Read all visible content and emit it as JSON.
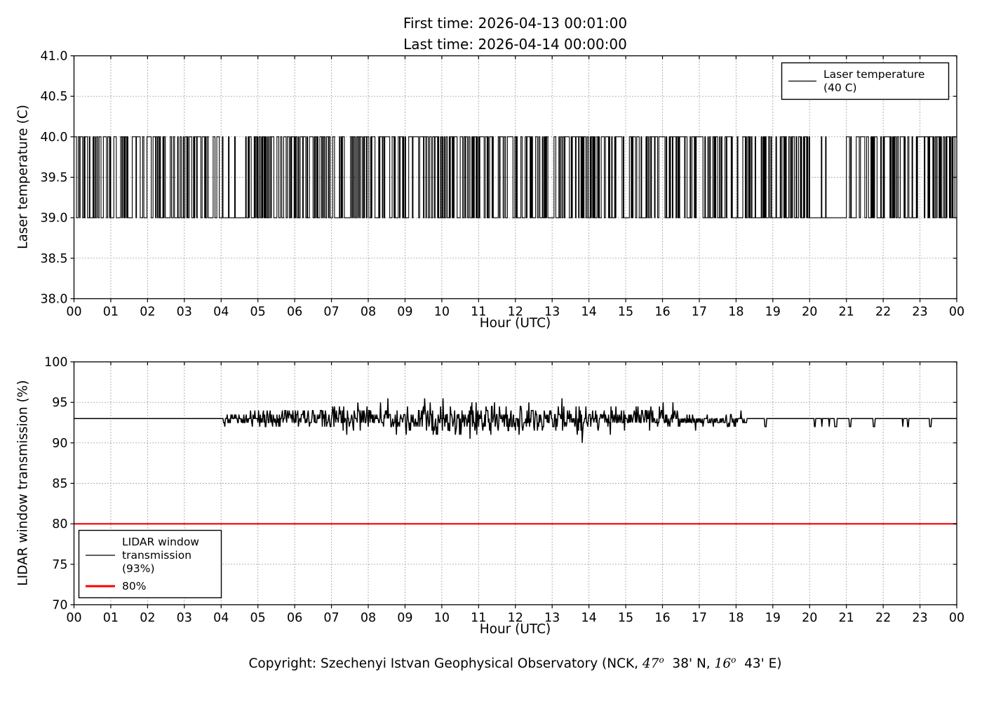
{
  "page": {
    "title_line1": "First time: 2026-04-13 00:01:00",
    "title_line2": "Last time: 2026-04-14 00:00:00",
    "footer": {
      "prefix": "Copyright: Szechenyi Istvan Geophysical Observatory (NCK, ",
      "lat_deg": "47",
      "deg": "o",
      "lat_rest": "  38' N, ",
      "lon_deg": "16",
      "lon_rest": "  43' E)"
    }
  },
  "chart_data": [
    {
      "type": "line",
      "title": "First time: 2026-04-13 00:01:00 / Last time: 2026-04-14 00:00:00",
      "xlabel": "Hour (UTC)",
      "ylabel": "Laser temperature (C)",
      "xlim": [
        0,
        24
      ],
      "ylim": [
        38.0,
        41.0
      ],
      "xticks": [
        "00",
        "01",
        "02",
        "03",
        "04",
        "05",
        "06",
        "07",
        "08",
        "09",
        "10",
        "11",
        "12",
        "13",
        "14",
        "15",
        "16",
        "17",
        "18",
        "19",
        "20",
        "21",
        "22",
        "23",
        "00"
      ],
      "ytick_values": [
        38.0,
        38.5,
        39.0,
        39.5,
        40.0,
        40.5,
        41.0
      ],
      "ytick_labels": [
        "38.0",
        "38.5",
        "39.0",
        "39.5",
        "40.0",
        "40.5",
        "41.0"
      ],
      "grid": true,
      "legend_position": "upper right",
      "legend_entries": [
        {
          "label_lines": [
            "Laser temperature",
            "(40 C)"
          ],
          "color": "#000000",
          "linewidth": 1.3
        }
      ],
      "series": [
        {
          "name": "Laser temperature (40 C)",
          "color": "#000000",
          "kind": "telegraph",
          "description": "Laser temperature toggles rapidly between 39.0 C and 40.0 C all day (square-wave telegraph signal); quieter stretches near 04:00-04:40 (mostly 39), 09:15-09:55 (mostly 40) and 20:00-21:00 (mostly 39).",
          "levels": [
            39.0,
            40.0
          ],
          "initial_level": 40.0,
          "samples_per_hour": 60,
          "seed": 20260413,
          "segments": [
            {
              "start": 0.0,
              "end": 4.0,
              "p_up": 0.4,
              "p_down": 0.4
            },
            {
              "start": 4.0,
              "end": 4.65,
              "p_up": 0.07,
              "p_down": 0.72
            },
            {
              "start": 4.65,
              "end": 9.2,
              "p_up": 0.42,
              "p_down": 0.42
            },
            {
              "start": 9.2,
              "end": 9.9,
              "p_up": 0.6,
              "p_down": 0.14
            },
            {
              "start": 9.9,
              "end": 14.5,
              "p_up": 0.48,
              "p_down": 0.44
            },
            {
              "start": 14.5,
              "end": 16.8,
              "p_up": 0.42,
              "p_down": 0.42
            },
            {
              "start": 16.8,
              "end": 17.25,
              "p_up": 0.55,
              "p_down": 0.22
            },
            {
              "start": 17.25,
              "end": 20.0,
              "p_up": 0.44,
              "p_down": 0.44
            },
            {
              "start": 20.0,
              "end": 20.95,
              "p_up": 0.06,
              "p_down": 0.78
            },
            {
              "start": 20.95,
              "end": 24.0,
              "p_up": 0.46,
              "p_down": 0.46
            }
          ]
        }
      ]
    },
    {
      "type": "line",
      "xlabel": "Hour (UTC)",
      "ylabel": "LIDAR window transmission (%)",
      "xlim": [
        0,
        24
      ],
      "ylim": [
        70,
        100
      ],
      "xticks": [
        "00",
        "01",
        "02",
        "03",
        "04",
        "05",
        "06",
        "07",
        "08",
        "09",
        "10",
        "11",
        "12",
        "13",
        "14",
        "15",
        "16",
        "17",
        "18",
        "19",
        "20",
        "21",
        "22",
        "23",
        "00"
      ],
      "ytick_values": [
        70,
        75,
        80,
        85,
        90,
        95,
        100
      ],
      "ytick_labels": [
        "70",
        "75",
        "80",
        "85",
        "90",
        "95",
        "100"
      ],
      "grid": true,
      "legend_position": "lower left",
      "legend_entries": [
        {
          "label_lines": [
            "LIDAR window",
            "transmission",
            "(93%)"
          ],
          "color": "#000000",
          "linewidth": 1.3
        },
        {
          "label_lines": [
            "80%"
          ],
          "color": "#ff0000",
          "linewidth": 3
        }
      ],
      "series": [
        {
          "name": "LIDAR window transmission (93%)",
          "color": "#000000",
          "kind": "noisy_baseline",
          "description": "Flat at 93% from 00:00 to ~04:00; quantized noise (0.5% steps) roughly 92.5-94% until 06:00, widening to ~89-96% between 06:00 and 14:00, ~91-95% until ~16:30, small dips to 92% until ~18:20, then flat at 93% with sparse 1% down-spikes (clusters near 18:30, 20:20-21:00, 21:20, 23:00-23:30).",
          "baseline": 93,
          "quantize": 0.5,
          "clamp": [
            89,
            96
          ],
          "samples_per_hour": 60,
          "seed": 424242,
          "segments": [
            {
              "start": 0.0,
              "end": 4.05,
              "sigma": 0,
              "bias": 0,
              "dip_prob": 0
            },
            {
              "start": 4.05,
              "end": 4.8,
              "sigma": 0.35,
              "bias": -0.15,
              "dip_prob": 0
            },
            {
              "start": 4.8,
              "end": 6.2,
              "sigma": 0.5,
              "bias": 0,
              "dip_prob": 0
            },
            {
              "start": 6.2,
              "end": 9.0,
              "sigma": 0.8,
              "bias": 0,
              "dip_prob": 0
            },
            {
              "start": 9.0,
              "end": 14.0,
              "sigma": 1.0,
              "bias": -0.1,
              "dip_prob": 0
            },
            {
              "start": 14.0,
              "end": 16.5,
              "sigma": 0.75,
              "bias": 0,
              "dip_prob": 0
            },
            {
              "start": 16.5,
              "end": 18.3,
              "sigma": 0.4,
              "bias": -0.2,
              "dip_prob": 0
            },
            {
              "start": 18.3,
              "end": 24.0,
              "sigma": 0,
              "bias": 0,
              "dip_prob": 0.025
            }
          ]
        },
        {
          "name": "80%",
          "color": "#ff0000",
          "kind": "hline",
          "value": 80,
          "linewidth": 2.2
        }
      ]
    }
  ]
}
